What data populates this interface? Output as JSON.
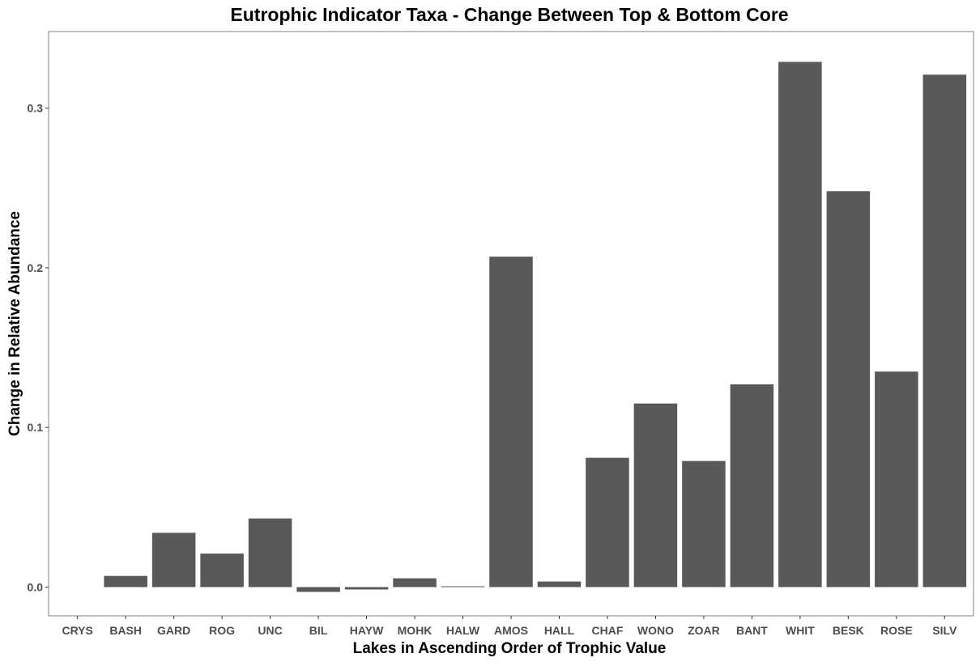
{
  "chart_data": {
    "type": "bar",
    "title": "Eutrophic Indicator Taxa - Change Between Top & Bottom Core",
    "xlabel": "Lakes in Ascending Order of Trophic Value",
    "ylabel": "Change in Relative Abundance",
    "categories": [
      "CRYS",
      "BASH",
      "GARD",
      "ROG",
      "UNC",
      "BIL",
      "HAYW",
      "MOHK",
      "HALW",
      "AMOS",
      "HALL",
      "CHAF",
      "WONO",
      "ZOAR",
      "BANT",
      "WHIT",
      "BESK",
      "ROSE",
      "SILV"
    ],
    "values": [
      0.0,
      0.007,
      0.034,
      0.021,
      0.043,
      -0.003,
      -0.0015,
      0.0055,
      0.0005,
      0.207,
      0.0035,
      0.081,
      0.115,
      0.079,
      0.127,
      0.329,
      0.248,
      0.135,
      0.321
    ],
    "yticks": [
      0.0,
      0.1,
      0.2,
      0.3
    ],
    "ytick_labels": [
      "0.0",
      "0.1",
      "0.2",
      "0.3"
    ],
    "ylim": [
      -0.018,
      0.348
    ],
    "grid": false,
    "legend": "none",
    "colors": {
      "bar": "#595959",
      "panel_border": "#7f7f7f",
      "tick": "#333333",
      "tick_label": "#4d4d4d",
      "background": "#ffffff"
    }
  }
}
